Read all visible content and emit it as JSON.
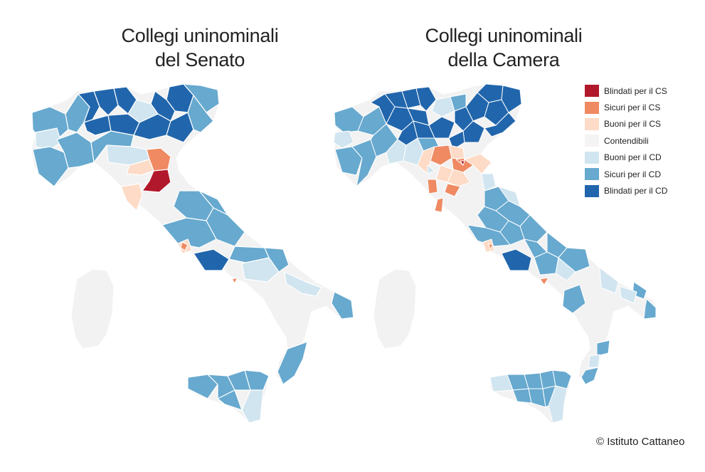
{
  "maps": [
    {
      "id": "senato",
      "title_line1": "Collegi uninominali",
      "title_line2": "del Senato"
    },
    {
      "id": "camera",
      "title_line1": "Collegi uninominali",
      "title_line2": "della Camera"
    }
  ],
  "legend": [
    {
      "label": "Blindati per il CS",
      "color": "#b2182b"
    },
    {
      "label": "Sicuri per il CS",
      "color": "#ef8a62"
    },
    {
      "label": "Buoni per il CS",
      "color": "#fddbc7"
    },
    {
      "label": "Contendibili",
      "color": "#f4f4f4"
    },
    {
      "label": "Buoni per il CD",
      "color": "#d1e5f0"
    },
    {
      "label": "Sicuri per il CD",
      "color": "#67a9cf"
    },
    {
      "label": "Blindati per il CD",
      "color": "#2166ac"
    }
  ],
  "credit": "© Istituto Cattaneo"
}
